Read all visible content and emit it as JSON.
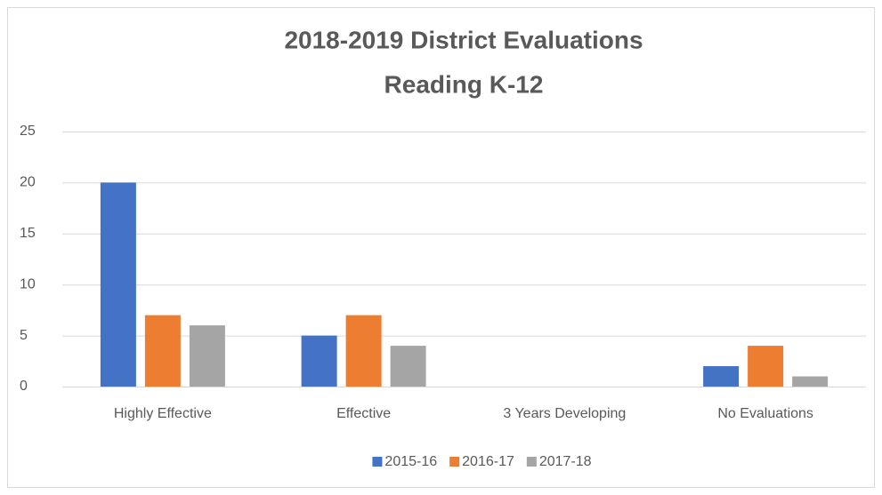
{
  "chart_data": {
    "type": "bar",
    "title": [
      "2018-2019 District Evaluations",
      "Reading K-12"
    ],
    "categories": [
      "Highly Effective",
      "Effective",
      "3 Years Developing",
      "No Evaluations"
    ],
    "series": [
      {
        "name": "2015-16",
        "color": "#4472c4",
        "values": [
          20,
          5,
          0,
          2
        ]
      },
      {
        "name": "2016-17",
        "color": "#ed7d31",
        "values": [
          7,
          7,
          0,
          4
        ]
      },
      {
        "name": "2017-18",
        "color": "#a5a5a5",
        "values": [
          6,
          4,
          0,
          1
        ]
      }
    ],
    "ylim": [
      0,
      25
    ],
    "yticks": [
      0,
      5,
      10,
      15,
      20,
      25
    ],
    "grid": true,
    "legend": "bottom"
  }
}
